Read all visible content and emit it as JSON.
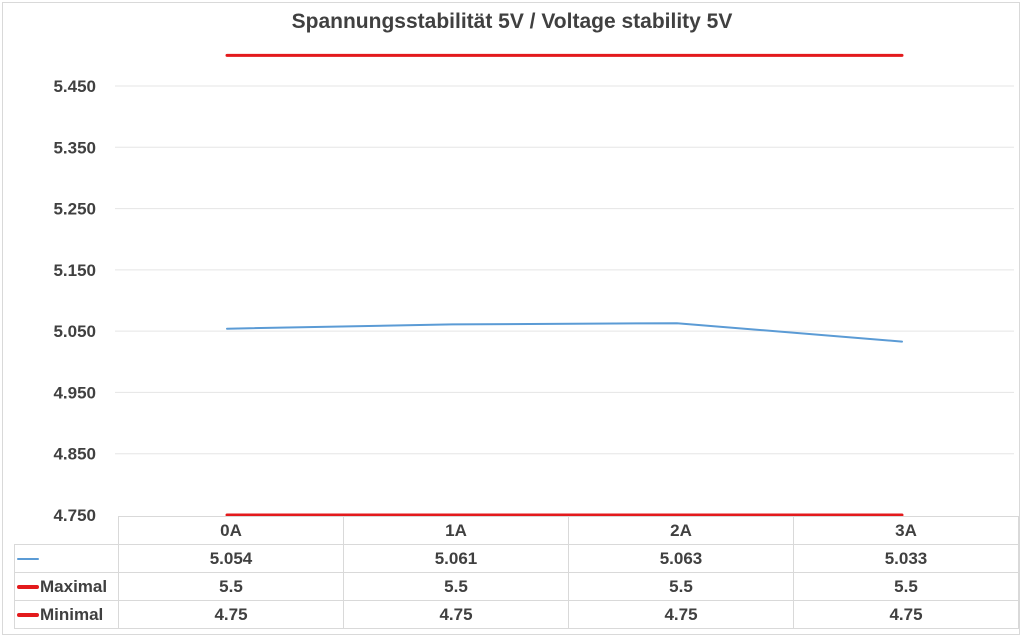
{
  "chart_data": {
    "type": "line",
    "title": "Spannungsstabilität 5V / Voltage stability 5V",
    "categories": [
      "0A",
      "1A",
      "2A",
      "3A"
    ],
    "series": [
      {
        "name": "",
        "values": [
          5.054,
          5.061,
          5.063,
          5.033
        ],
        "color": "#5b9bd5",
        "values_display": [
          "5.054",
          "5.061",
          "5.063",
          "5.033"
        ]
      },
      {
        "name": "Maximal",
        "values": [
          5.5,
          5.5,
          5.5,
          5.5
        ],
        "color": "#e31a1c",
        "values_display": [
          "5.5",
          "5.5",
          "5.5",
          "5.5"
        ]
      },
      {
        "name": "Minimal",
        "values": [
          4.75,
          4.75,
          4.75,
          4.75
        ],
        "color": "#e31a1c",
        "values_display": [
          "4.75",
          "4.75",
          "4.75",
          "4.75"
        ]
      }
    ],
    "ylim": [
      4.75,
      5.5
    ],
    "yticks": [
      "4.750",
      "4.850",
      "4.950",
      "5.050",
      "5.150",
      "5.250",
      "5.350",
      "5.450"
    ],
    "grid": true,
    "legend": "data-table"
  }
}
